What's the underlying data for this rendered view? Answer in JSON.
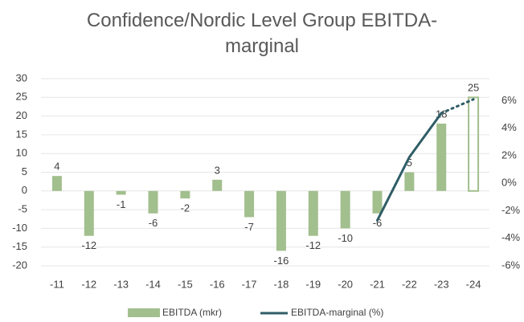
{
  "chart_data": {
    "type": "bar",
    "title": "Confidence/Nordic Level Group EBITDA-marginal",
    "categories": [
      "-11",
      "-12",
      "-13",
      "-14",
      "-15",
      "-16",
      "-17",
      "-18",
      "-19",
      "-20",
      "-21",
      "-22",
      "-23",
      "-24"
    ],
    "series": [
      {
        "name": "EBITDA (mkr)",
        "type": "bar",
        "color": "#a2bf8e",
        "values": [
          4,
          -12,
          -1,
          -6,
          -2,
          3,
          -7,
          -16,
          -12,
          -10,
          -6,
          5,
          18,
          25
        ]
      },
      {
        "name": "EBITDA-marginal (%)",
        "type": "line",
        "color": "#2f5d66",
        "axis": "y2",
        "values": [
          null,
          null,
          null,
          null,
          null,
          null,
          null,
          null,
          null,
          null,
          -2.7,
          1.9,
          5.1,
          6.1
        ]
      }
    ],
    "forecast_index": 13,
    "ylim": [
      -20,
      30
    ],
    "yticks": [
      -20,
      -15,
      -10,
      -5,
      0,
      5,
      10,
      15,
      20,
      25,
      30
    ],
    "y2lim": [
      -6,
      7.6
    ],
    "y2ticks": [
      {
        "value": -6,
        "label": "-6%"
      },
      {
        "value": -4,
        "label": "-4%"
      },
      {
        "value": -2,
        "label": "-2%"
      },
      {
        "value": 0,
        "label": "0%"
      },
      {
        "value": 2,
        "label": "2%"
      },
      {
        "value": 4,
        "label": "4%"
      },
      {
        "value": 6,
        "label": "6%"
      }
    ],
    "grid": true
  }
}
